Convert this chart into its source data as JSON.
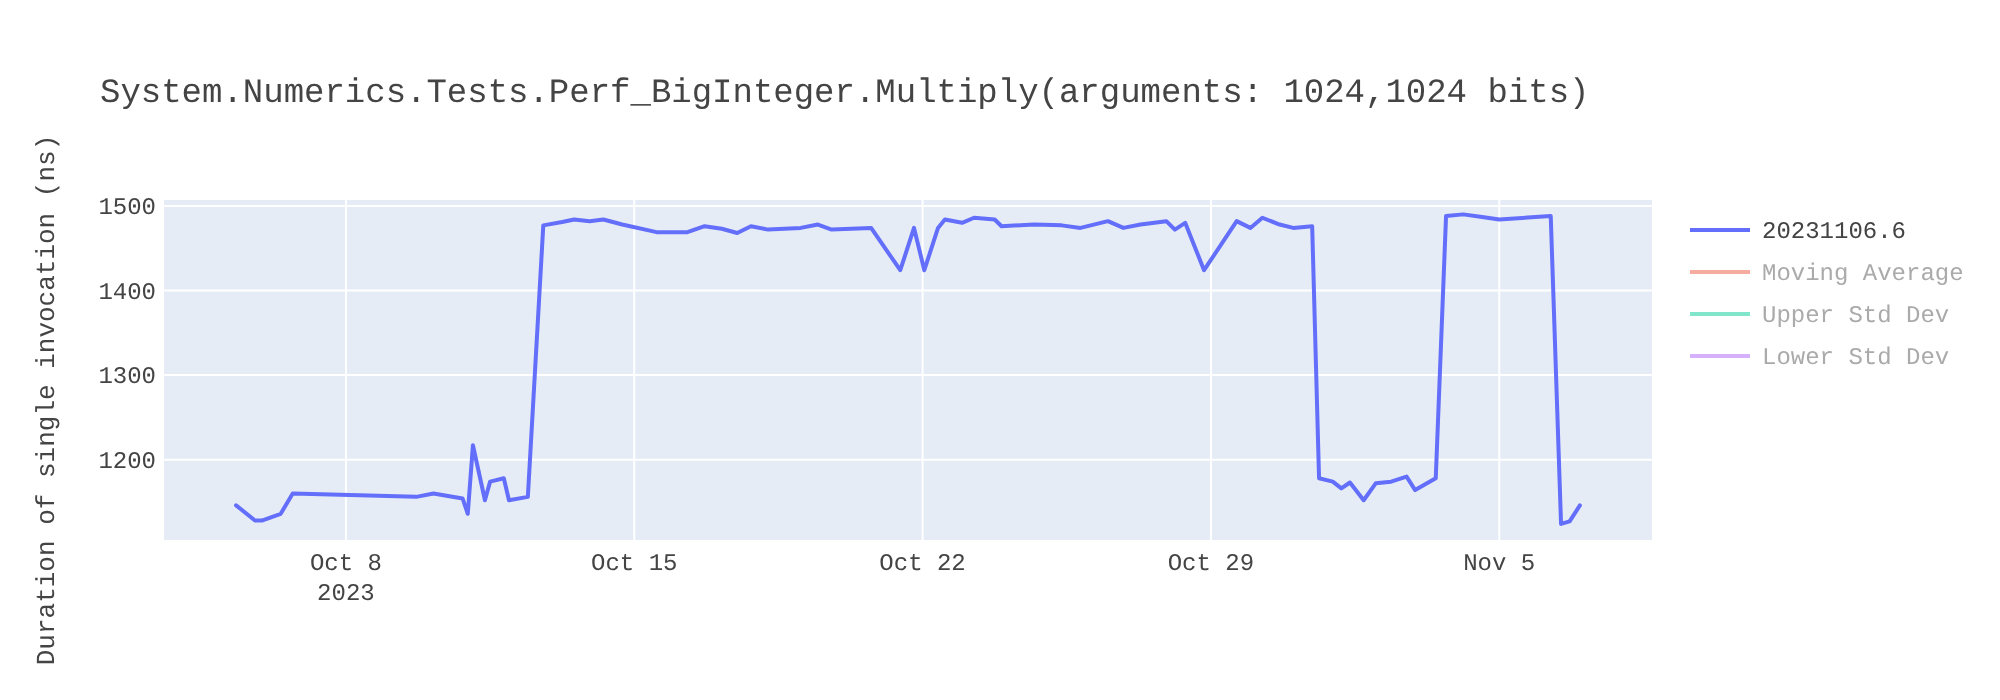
{
  "chart_data": {
    "type": "line",
    "title": "System.Numerics.Tests.Perf_BigInteger.Multiply(arguments: 1024,1024 bits)",
    "ylabel": "Duration of single invocation (ns)",
    "x": [
      "2023-10-05T08:00",
      "2023-10-05T19:00",
      "2023-10-05T23:00",
      "2023-10-06T10:00",
      "2023-10-06T17:00",
      "2023-10-09T17:00",
      "2023-10-10T03:00",
      "2023-10-10T20:00",
      "2023-10-10T23:00",
      "2023-10-11T02:00",
      "2023-10-11T09:00",
      "2023-10-11T12:00",
      "2023-10-11T20:00",
      "2023-10-11T23:00",
      "2023-10-12T10:00",
      "2023-10-12T19:00",
      "2023-10-13T06:00",
      "2023-10-13T13:00",
      "2023-10-13T22:00",
      "2023-10-14T06:00",
      "2023-10-14T17:00",
      "2023-10-15T13:00",
      "2023-10-16T07:00",
      "2023-10-16T17:00",
      "2023-10-17T03:00",
      "2023-10-17T12:00",
      "2023-10-17T20:00",
      "2023-10-18T06:00",
      "2023-10-19T01:00",
      "2023-10-19T11:00",
      "2023-10-19T19:00",
      "2023-10-20T18:00",
      "2023-10-21T11:00",
      "2023-10-21T19:00",
      "2023-10-22T01:00",
      "2023-10-22T09:00",
      "2023-10-22T13:00",
      "2023-10-22T23:00",
      "2023-10-23T06:00",
      "2023-10-23T18:00",
      "2023-10-23T22:00",
      "2023-10-24T17:00",
      "2023-10-25T09:00",
      "2023-10-25T20:00",
      "2023-10-26T12:00",
      "2023-10-26T21:00",
      "2023-10-27T07:00",
      "2023-10-27T22:00",
      "2023-10-28T03:00",
      "2023-10-28T09:00",
      "2023-10-28T20:00",
      "2023-10-29T15:00",
      "2023-10-29T23:00",
      "2023-10-30T06:00",
      "2023-10-30T16:00",
      "2023-10-31T00:00",
      "2023-10-31T11:00",
      "2023-10-31T15:00",
      "2023-10-31T23:00",
      "2023-11-01T04:00",
      "2023-11-01T09:00",
      "2023-11-01T17:00",
      "2023-11-02T00:00",
      "2023-11-02T09:00",
      "2023-11-02T18:00",
      "2023-11-02T23:00",
      "2023-11-03T11:00",
      "2023-11-03T17:00",
      "2023-11-04T03:00",
      "2023-11-04T14:00",
      "2023-11-05T00:00",
      "2023-11-06T06:00",
      "2023-11-06T12:00",
      "2023-11-06T17:00",
      "2023-11-06T23:00"
    ],
    "series": [
      {
        "name": "20231106.6",
        "color": "#636efa",
        "values": [
          1146,
          1128,
          1128,
          1136,
          1160,
          1156,
          1160,
          1154,
          1136,
          1217,
          1152,
          1174,
          1178,
          1152,
          1156,
          1477,
          1481,
          1484,
          1482,
          1484,
          1478,
          1469,
          1469,
          1476,
          1473,
          1468,
          1476,
          1472,
          1474,
          1478,
          1472,
          1474,
          1424,
          1474,
          1424,
          1474,
          1484,
          1480,
          1486,
          1484,
          1476,
          1478,
          1477,
          1474,
          1482,
          1474,
          1478,
          1482,
          1472,
          1480,
          1424,
          1482,
          1474,
          1486,
          1478,
          1474,
          1476,
          1178,
          1174,
          1166,
          1173,
          1152,
          1172,
          1174,
          1180,
          1164,
          1178,
          1488,
          1490,
          1487,
          1484,
          1488,
          1124,
          1127,
          1146
        ]
      },
      {
        "name": "Moving Average",
        "color": "#f5ab9d",
        "values": [
          null,
          null,
          null,
          null,
          null,
          null,
          null,
          null,
          null,
          null,
          null,
          null,
          null,
          null,
          null,
          null,
          null,
          null,
          null,
          null,
          null,
          null,
          null,
          null,
          null,
          null,
          null,
          null,
          null,
          null,
          null,
          null,
          null,
          null,
          null,
          null,
          null,
          null,
          null,
          null,
          null,
          null,
          null,
          null,
          null,
          null,
          null,
          null,
          null,
          null,
          null,
          null,
          null,
          null,
          null,
          null,
          null,
          null,
          null,
          null,
          null,
          null,
          null,
          null,
          null,
          null,
          null,
          null,
          null,
          null,
          null,
          null,
          null,
          null,
          null
        ]
      },
      {
        "name": "Upper Std Dev",
        "color": "#80e5ca",
        "values": [
          null,
          null,
          null,
          null,
          null,
          null,
          null,
          null,
          null,
          null,
          null,
          null,
          null,
          null,
          null,
          null,
          null,
          null,
          null,
          null,
          null,
          null,
          null,
          null,
          null,
          null,
          null,
          null,
          null,
          null,
          null,
          null,
          null,
          null,
          null,
          null,
          null,
          null,
          null,
          null,
          null,
          null,
          null,
          null,
          null,
          null,
          null,
          null,
          null,
          null,
          null,
          null,
          null,
          null,
          null,
          null,
          null,
          null,
          null,
          null,
          null,
          null,
          null,
          null,
          null,
          null,
          null,
          null,
          null,
          null,
          null,
          null,
          null,
          null,
          null
        ]
      },
      {
        "name": "Lower Std Dev",
        "color": "#d5b1fc",
        "values": [
          null,
          null,
          null,
          null,
          null,
          null,
          null,
          null,
          null,
          null,
          null,
          null,
          null,
          null,
          null,
          null,
          null,
          null,
          null,
          null,
          null,
          null,
          null,
          null,
          null,
          null,
          null,
          null,
          null,
          null,
          null,
          null,
          null,
          null,
          null,
          null,
          null,
          null,
          null,
          null,
          null,
          null,
          null,
          null,
          null,
          null,
          null,
          null,
          null,
          null,
          null,
          null,
          null,
          null,
          null,
          null,
          null,
          null,
          null,
          null,
          null,
          null,
          null,
          null,
          null,
          null,
          null,
          null,
          null,
          null,
          null,
          null,
          null,
          null,
          null
        ]
      }
    ],
    "xlim": [
      "2023-10-03T14:00",
      "2023-11-08T17:00"
    ],
    "xticks": [
      {
        "value": "2023-10-08",
        "label": "Oct 8\n2023"
      },
      {
        "value": "2023-10-15",
        "label": "Oct 15"
      },
      {
        "value": "2023-10-22",
        "label": "Oct 22"
      },
      {
        "value": "2023-10-29",
        "label": "Oct 29"
      },
      {
        "value": "2023-11-05",
        "label": "Nov 5"
      }
    ],
    "ylim": [
      1105,
      1507
    ],
    "yticks": [
      1200,
      1300,
      1400,
      1500
    ],
    "grid": true,
    "legend": "right",
    "line_style": "solid"
  }
}
